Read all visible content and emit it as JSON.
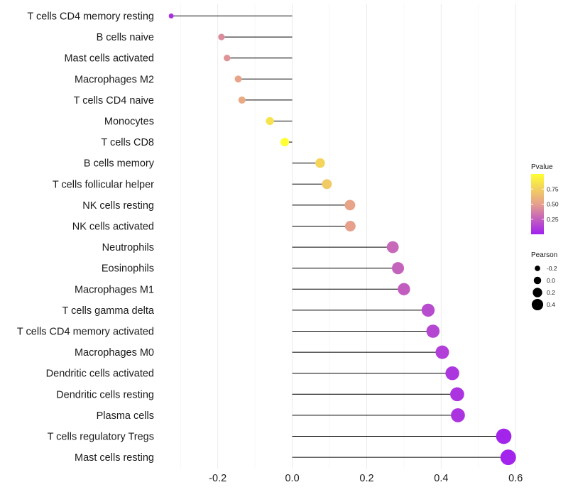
{
  "chart_data": {
    "type": "lollipop",
    "title": "",
    "xlabel": "",
    "ylabel": "",
    "xlim": [
      -0.35,
      0.63
    ],
    "x_ticks": [
      -0.2,
      0.0,
      0.2,
      0.4,
      0.6
    ],
    "x_tick_labels": [
      "-0.2",
      "0.0",
      "0.2",
      "0.4",
      "0.6"
    ],
    "grid": true,
    "categories": [
      "T cells CD4 memory resting",
      "B cells naive",
      "Mast cells activated",
      "Macrophages M2",
      "T cells CD4 naive",
      "Monocytes",
      "T cells CD8",
      "B cells memory",
      "T cells follicular helper",
      "NK cells resting",
      "NK cells activated",
      "Neutrophils",
      "Eosinophils",
      "Macrophages M1",
      "T cells gamma delta",
      "T cells CD4 memory activated",
      "Macrophages M0",
      "Dendritic cells activated",
      "Dendritic cells resting",
      "Plasma cells",
      "T cells regulatory  Tregs ",
      "Mast cells resting"
    ],
    "pearson": [
      -0.325,
      -0.19,
      -0.175,
      -0.145,
      -0.135,
      -0.06,
      -0.02,
      0.075,
      0.093,
      0.155,
      0.156,
      0.27,
      0.284,
      0.3,
      0.365,
      0.378,
      0.403,
      0.43,
      0.443,
      0.445,
      0.568,
      0.58
    ],
    "pvalue": [
      0.05,
      0.42,
      0.45,
      0.52,
      0.55,
      0.85,
      1.0,
      0.78,
      0.72,
      0.52,
      0.5,
      0.28,
      0.26,
      0.24,
      0.17,
      0.15,
      0.12,
      0.09,
      0.08,
      0.08,
      0.02,
      0.015
    ],
    "legend_pvalue": {
      "title": "Pvalue",
      "range": [
        0.0,
        1.0
      ],
      "ticks": [
        0.25,
        0.5,
        0.75
      ],
      "tick_labels": [
        "0.25",
        "0.50",
        "0.75"
      ],
      "colors": [
        "#A020F0",
        "#E6A08C",
        "#FFFF33"
      ]
    },
    "legend_pearson": {
      "title": "Pearson",
      "values": [
        -0.2,
        0.0,
        0.2,
        0.4
      ],
      "labels": [
        "-0.2",
        "0.0",
        "0.2",
        "0.4"
      ]
    },
    "legend_placement": "right"
  }
}
